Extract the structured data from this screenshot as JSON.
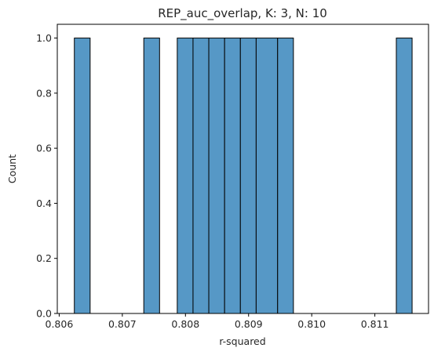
{
  "chart_data": {
    "type": "bar",
    "title": "REP_auc_overlap, K: 3, N: 10",
    "xlabel": "r-squared",
    "ylabel": "Count",
    "xlim": [
      0.80597,
      0.81185
    ],
    "ylim": [
      0,
      1.05
    ],
    "x_ticks": [
      {
        "value": 0.806,
        "label": "0.806"
      },
      {
        "value": 0.807,
        "label": "0.807"
      },
      {
        "value": 0.808,
        "label": "0.808"
      },
      {
        "value": 0.809,
        "label": "0.809"
      },
      {
        "value": 0.81,
        "label": "0.810"
      },
      {
        "value": 0.811,
        "label": "0.811"
      }
    ],
    "y_ticks": [
      {
        "value": 0.0,
        "label": "0.0"
      },
      {
        "value": 0.2,
        "label": "0.2"
      },
      {
        "value": 0.4,
        "label": "0.4"
      },
      {
        "value": 0.6,
        "label": "0.6"
      },
      {
        "value": 0.8,
        "label": "0.8"
      },
      {
        "value": 1.0,
        "label": "1.0"
      }
    ],
    "bars": [
      {
        "x0": 0.80624,
        "x1": 0.80649,
        "count": 1
      },
      {
        "x0": 0.80734,
        "x1": 0.80759,
        "count": 1
      },
      {
        "x0": 0.80787,
        "x1": 0.80812,
        "count": 1
      },
      {
        "x0": 0.80812,
        "x1": 0.80837,
        "count": 1
      },
      {
        "x0": 0.80837,
        "x1": 0.80862,
        "count": 1
      },
      {
        "x0": 0.80862,
        "x1": 0.80887,
        "count": 1
      },
      {
        "x0": 0.80887,
        "x1": 0.80912,
        "count": 1
      },
      {
        "x0": 0.80912,
        "x1": 0.80946,
        "count": 1
      },
      {
        "x0": 0.80946,
        "x1": 0.80971,
        "count": 1
      },
      {
        "x0": 0.81134,
        "x1": 0.81159,
        "count": 1
      }
    ],
    "bar_color": "#5698c6",
    "edge_color": "#000000",
    "grid": false
  }
}
